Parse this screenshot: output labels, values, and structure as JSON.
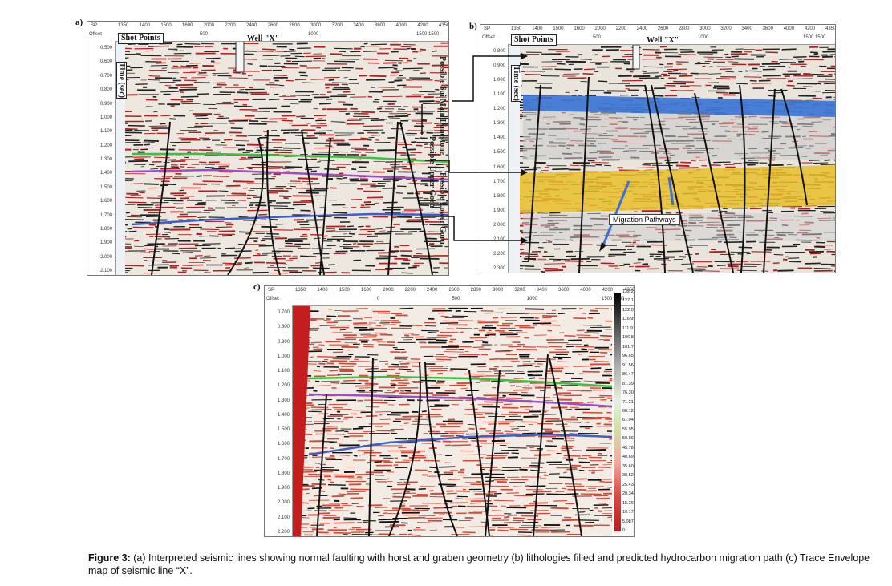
{
  "panels": {
    "a": {
      "label": "a)",
      "sp_header": "SP",
      "offset_header": "Offset",
      "sp_ticks": [
        "1350",
        "1400",
        "1500",
        "1600",
        "2000",
        "2200",
        "2400",
        "2600",
        "2800",
        "3000",
        "3200",
        "3400",
        "3600",
        "4000",
        "4200",
        "4350"
      ],
      "offset_ticks": [
        "500",
        "1000",
        "1500 1500"
      ],
      "shot_points": "Shot Points",
      "well": "Well \"X\"",
      "time_label": "Time (sec)",
      "time_ticks": [
        "0.500",
        "0.600",
        "0.700",
        "0.800",
        "0.900",
        "1.000",
        "1.100",
        "1.200",
        "1.300",
        "1.400",
        "1.500",
        "1.600",
        "1.700",
        "1.800",
        "1.900",
        "2.000",
        "2.100"
      ],
      "formations": [
        "Possible Sui Main Limestone",
        "Possible Upper Goru",
        "Possible Lower Goru"
      ]
    },
    "b": {
      "label": "b)",
      "sp_header": "SP",
      "offset_header": "Offset",
      "sp_ticks": [
        "1350",
        "1400",
        "1500",
        "1600",
        "2000",
        "2200",
        "2400",
        "2600",
        "2800",
        "3000",
        "3200",
        "3400",
        "3600",
        "4000",
        "4200",
        "4350"
      ],
      "offset_ticks": [
        "500",
        "1000",
        "1500 1500"
      ],
      "shot_points": "Shot Points",
      "well": "Well \"X\"",
      "time_label": "Time (sec)",
      "time_ticks": [
        "0.800",
        "0.900",
        "1.000",
        "1.100",
        "1.200",
        "1.300",
        "1.400",
        "1.500",
        "1.600",
        "1.700",
        "1.800",
        "1.900",
        "2.000",
        "2.100",
        "2.200",
        "2.300"
      ],
      "migration": "Migration Pathways"
    },
    "c": {
      "label": "c)",
      "sp_header": "SP",
      "offset_header": "Offset",
      "sp_ticks": [
        "1350",
        "1400",
        "1500",
        "1600",
        "2000",
        "2200",
        "2400",
        "2600",
        "2800",
        "3000",
        "3200",
        "3400",
        "3600",
        "4000",
        "4200",
        "4350"
      ],
      "offset_ticks": [
        "0",
        "500",
        "1000",
        "1500 1500"
      ],
      "time_ticks": [
        "0.700",
        "0.800",
        "0.900",
        "1.000",
        "1.100",
        "1.200",
        "1.300",
        "1.400",
        "1.500",
        "1.600",
        "1.700",
        "1.800",
        "1.900",
        "2.000",
        "2.100",
        "2.200"
      ],
      "scale_values": [
        "132.259",
        "127.172",
        "122.085",
        "116.998",
        "111.911",
        "106.824",
        "101.737",
        "96.651",
        "91.564",
        "86.477",
        "81.390",
        "76.303",
        "71.216",
        "66.129",
        "61.042",
        "55.956",
        "50.869",
        "45.782",
        "40.695",
        "35.608",
        "30.521",
        "25.434",
        "20.347",
        "15.261",
        "10.174",
        "5.087",
        "0"
      ]
    }
  },
  "caption": {
    "label": "Figure 3:",
    "text": " (a) Interpreted seismic lines showing normal faulting with horst and graben geometry (b) lithologies filled and predicted hydrocarbon migration path (c) Trace Envelope map of seismic line “X”."
  },
  "colors": {
    "green_horizon": "#3fbf3f",
    "purple_horizon": "#9b4fc0",
    "blue_horizon": "#3f5fc8",
    "fill_blue": "#2f6fd6",
    "fill_yellow": "#e8c02a",
    "seismic_red": "#b22222",
    "fault": "#111111"
  }
}
